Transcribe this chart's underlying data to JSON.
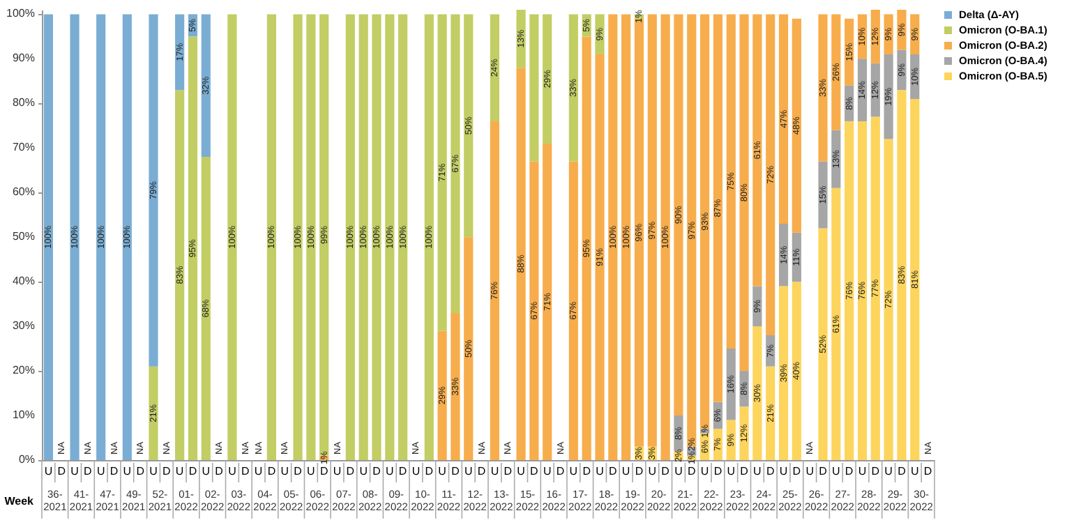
{
  "chart_data": {
    "type": "bar",
    "stacked": true,
    "xlabel": "Week",
    "legend": "right",
    "grid": false,
    "categories": [
      "U",
      "D",
      "U",
      "D",
      "U",
      "D",
      "U",
      "D",
      "U",
      "D",
      "U",
      "D",
      "U",
      "D",
      "U",
      "D",
      "U",
      "D",
      "U",
      "D",
      "U",
      "D",
      "U",
      "D",
      "U",
      "D",
      "U",
      "D",
      "U",
      "D",
      "U",
      "D",
      "U",
      "D",
      "U",
      "D",
      "U",
      "D",
      "U",
      "D",
      "U",
      "D",
      "U",
      "D",
      "U",
      "D",
      "U",
      "D",
      "U",
      "D",
      "U",
      "D",
      "U",
      "D",
      "U",
      "D",
      "U",
      "D",
      "U",
      "D",
      "U",
      "D",
      "U",
      "D",
      "U",
      "D",
      "U",
      "D"
    ],
    "annotations": [
      "36-2021",
      "41-2021",
      "47-2021",
      "49-2021",
      "52-2021",
      "01-2022",
      "02-2022",
      "03-2022",
      "04-2022",
      "05-2022",
      "06-2022",
      "07-2022",
      "08-2022",
      "09-2022",
      "10-2022",
      "11-2022",
      "12-2022",
      "13-2022",
      "15-2022",
      "16-2022",
      "17-2022",
      "18-2022",
      "19-2022",
      "20-2022",
      "21-2022",
      "22-2022",
      "23-2022",
      "24-2022",
      "25-2022",
      "26-2022",
      "27-2022",
      "28-2022",
      "29-2022",
      "30-2022"
    ],
    "ylim": [
      0,
      101
    ],
    "yticks": [
      {
        "value": 0,
        "label": "0%"
      },
      {
        "value": 10,
        "label": "10%"
      },
      {
        "value": 20,
        "label": "20%"
      },
      {
        "value": 30,
        "label": "30%"
      },
      {
        "value": 40,
        "label": "40%"
      },
      {
        "value": 50,
        "label": "50%"
      },
      {
        "value": 60,
        "label": "60%"
      },
      {
        "value": 70,
        "label": "70%"
      },
      {
        "value": 80,
        "label": "80%"
      },
      {
        "value": 90,
        "label": "90%"
      },
      {
        "value": 100,
        "label": "100%"
      }
    ],
    "series": [
      {
        "name": "Omicron (O-BA.5)",
        "color": "#fdd55c",
        "values": [
          null,
          null,
          null,
          null,
          null,
          null,
          null,
          null,
          null,
          null,
          null,
          null,
          null,
          null,
          null,
          null,
          null,
          null,
          null,
          null,
          null,
          null,
          null,
          null,
          null,
          null,
          null,
          null,
          null,
          null,
          null,
          null,
          null,
          null,
          null,
          null,
          null,
          null,
          null,
          null,
          null,
          null,
          null,
          null,
          null,
          3,
          3,
          null,
          2,
          1,
          6,
          7,
          9,
          12,
          30,
          21,
          39,
          40,
          null,
          52,
          61,
          76,
          76,
          77,
          72,
          83,
          81,
          null
        ],
        "value_labels": [
          null,
          null,
          null,
          null,
          null,
          null,
          null,
          null,
          null,
          null,
          null,
          null,
          null,
          null,
          null,
          null,
          null,
          null,
          null,
          null,
          null,
          null,
          null,
          null,
          null,
          null,
          null,
          null,
          null,
          null,
          null,
          null,
          null,
          null,
          null,
          null,
          null,
          null,
          null,
          null,
          null,
          null,
          null,
          null,
          null,
          "3%",
          "3%",
          null,
          "2%",
          "1%",
          "6%",
          "7%",
          "9%",
          "12%",
          "30%",
          "21%",
          "39%",
          "40%",
          null,
          "52%",
          "61%",
          "76%",
          "76%",
          "77%",
          "72%",
          "83%",
          "81%",
          null
        ]
      },
      {
        "name": "Omicron (O-BA.4)",
        "color": "#a6a6a6",
        "values": [
          null,
          null,
          null,
          null,
          null,
          null,
          null,
          null,
          null,
          null,
          null,
          null,
          null,
          null,
          null,
          null,
          null,
          null,
          null,
          null,
          null,
          null,
          null,
          null,
          null,
          null,
          null,
          null,
          null,
          null,
          null,
          null,
          null,
          null,
          null,
          null,
          null,
          null,
          null,
          null,
          null,
          null,
          null,
          null,
          null,
          null,
          null,
          null,
          8,
          2,
          1,
          6,
          16,
          8,
          9,
          7,
          14,
          11,
          null,
          15,
          13,
          8,
          14,
          12,
          19,
          9,
          10,
          null
        ],
        "value_labels": [
          null,
          null,
          null,
          null,
          null,
          null,
          null,
          null,
          null,
          null,
          null,
          null,
          null,
          null,
          null,
          null,
          null,
          null,
          null,
          null,
          null,
          null,
          null,
          null,
          null,
          null,
          null,
          null,
          null,
          null,
          null,
          null,
          null,
          null,
          null,
          null,
          null,
          null,
          null,
          null,
          null,
          null,
          null,
          null,
          null,
          null,
          null,
          null,
          "8%",
          "2%",
          "1%",
          "6%",
          "16%",
          "8%",
          "9%",
          "7%",
          "14%",
          "11%",
          null,
          "15%",
          "13%",
          "8%",
          "14%",
          "12%",
          "19%",
          "9%",
          "10%",
          null
        ]
      },
      {
        "name": "Omicron (O-BA.2)",
        "color": "#f7ad4b",
        "values": [
          null,
          null,
          null,
          null,
          null,
          null,
          null,
          null,
          null,
          null,
          null,
          null,
          null,
          null,
          null,
          null,
          null,
          null,
          null,
          null,
          null,
          1,
          null,
          null,
          null,
          null,
          null,
          null,
          null,
          null,
          29,
          33,
          50,
          null,
          76,
          null,
          88,
          67,
          71,
          null,
          67,
          95,
          91,
          100,
          100,
          96,
          97,
          100,
          90,
          97,
          93,
          87,
          75,
          80,
          61,
          72,
          47,
          48,
          null,
          33,
          26,
          15,
          10,
          12,
          9,
          9,
          9,
          null
        ],
        "value_labels": [
          null,
          null,
          null,
          null,
          null,
          null,
          null,
          null,
          null,
          null,
          null,
          null,
          null,
          null,
          null,
          null,
          null,
          null,
          null,
          null,
          null,
          "1%",
          null,
          null,
          null,
          null,
          null,
          null,
          null,
          null,
          "29%",
          "33%",
          "50%",
          null,
          "76%",
          null,
          "88%",
          "67%",
          "71%",
          null,
          "67%",
          "95%",
          "91%",
          "100%",
          "100%",
          "96%",
          "97%",
          "100%",
          "90%",
          "97%",
          "93%",
          "87%",
          "75%",
          "80%",
          "61%",
          "72%",
          "47%",
          "48%",
          null,
          "33%",
          "26%",
          "15%",
          "10%",
          "12%",
          "9%",
          "9%",
          "9%",
          null
        ]
      },
      {
        "name": "Omicron (O-BA.1)",
        "color": "#c2cd64",
        "values": [
          null,
          null,
          null,
          null,
          null,
          null,
          null,
          null,
          21,
          null,
          83,
          95,
          68,
          null,
          100,
          null,
          null,
          100,
          null,
          100,
          100,
          99,
          null,
          100,
          100,
          100,
          100,
          100,
          null,
          100,
          71,
          67,
          50,
          null,
          24,
          null,
          13,
          33,
          29,
          null,
          33,
          5,
          9,
          null,
          null,
          1,
          null,
          null,
          null,
          null,
          null,
          null,
          null,
          null,
          null,
          null,
          null,
          null,
          null,
          null,
          null,
          null,
          null,
          null,
          null,
          null,
          null,
          null
        ],
        "value_labels": [
          null,
          null,
          null,
          null,
          null,
          null,
          null,
          null,
          "21%",
          null,
          "83%",
          "95%",
          "68%",
          null,
          "100%",
          null,
          null,
          "100%",
          null,
          "100%",
          "100%",
          "99%",
          null,
          "100%",
          "100%",
          "100%",
          "100%",
          "100%",
          null,
          "100%",
          "71%",
          "67%",
          "50%",
          null,
          "24%",
          null,
          "13%",
          null,
          "29%",
          null,
          "33%",
          "5%",
          "9%",
          null,
          null,
          "1%",
          null,
          null,
          null,
          null,
          null,
          null,
          null,
          null,
          null,
          null,
          null,
          null,
          null,
          null,
          null,
          null,
          null,
          null,
          null,
          null,
          null,
          null
        ]
      },
      {
        "name": "Delta (Δ-AY)",
        "color": "#7aadd3",
        "values": [
          100,
          null,
          100,
          null,
          100,
          null,
          100,
          null,
          79,
          null,
          17,
          5,
          32,
          null,
          null,
          null,
          null,
          null,
          null,
          null,
          null,
          null,
          null,
          null,
          null,
          null,
          null,
          null,
          null,
          null,
          null,
          null,
          null,
          null,
          null,
          null,
          null,
          null,
          null,
          null,
          null,
          null,
          null,
          null,
          null,
          null,
          null,
          null,
          null,
          null,
          null,
          null,
          null,
          null,
          null,
          null,
          null,
          null,
          null,
          null,
          null,
          null,
          null,
          null,
          null,
          null,
          null,
          null
        ],
        "value_labels": [
          "100%",
          "NA",
          "100%",
          "NA",
          "100%",
          "NA",
          "100%",
          "NA",
          "79%",
          "NA",
          "17%",
          "5%",
          "32%",
          "NA",
          null,
          "NA",
          "NA",
          null,
          "NA",
          null,
          null,
          null,
          "NA",
          null,
          null,
          null,
          null,
          null,
          "NA",
          null,
          null,
          null,
          null,
          "NA",
          null,
          "NA",
          null,
          null,
          null,
          "NA",
          null,
          null,
          null,
          null,
          null,
          null,
          null,
          null,
          null,
          null,
          null,
          null,
          null,
          null,
          null,
          null,
          null,
          null,
          "NA",
          null,
          null,
          null,
          null,
          null,
          null,
          null,
          null,
          "NA"
        ]
      }
    ]
  }
}
